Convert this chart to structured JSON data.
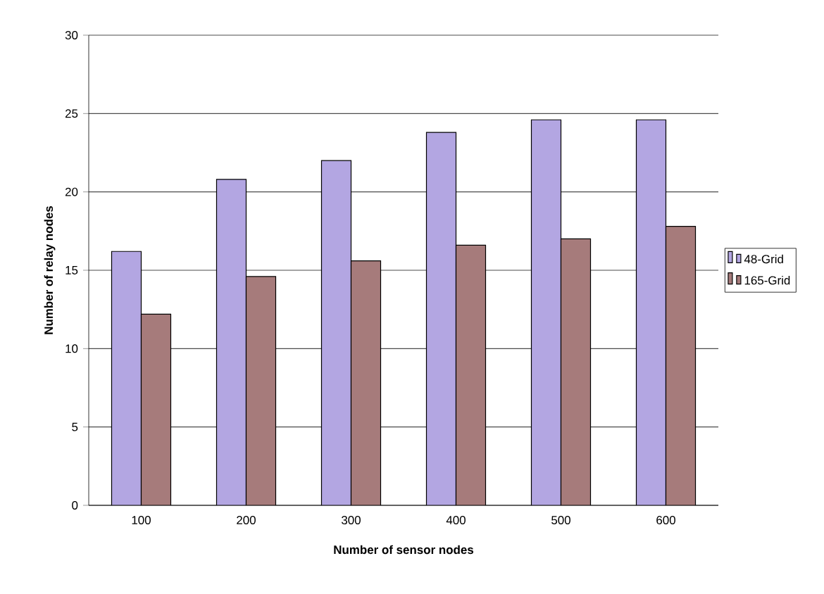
{
  "chart_data": {
    "type": "bar",
    "xlabel": "Number of sensor nodes",
    "ylabel": "Number of relay nodes",
    "categories": [
      "100",
      "200",
      "300",
      "400",
      "500",
      "600"
    ],
    "series": [
      {
        "name": "48-Grid",
        "color": "#b3a6e2",
        "values": [
          16.2,
          20.8,
          22.0,
          23.8,
          24.6,
          24.6
        ]
      },
      {
        "name": "165-Grid",
        "color": "#a67b7b",
        "values": [
          12.2,
          14.6,
          15.6,
          16.6,
          17.0,
          17.8
        ]
      }
    ],
    "ylim": [
      0,
      30
    ],
    "yticks": [
      0,
      5,
      10,
      15,
      20,
      25,
      30
    ],
    "grid": "y",
    "legend": "right"
  }
}
